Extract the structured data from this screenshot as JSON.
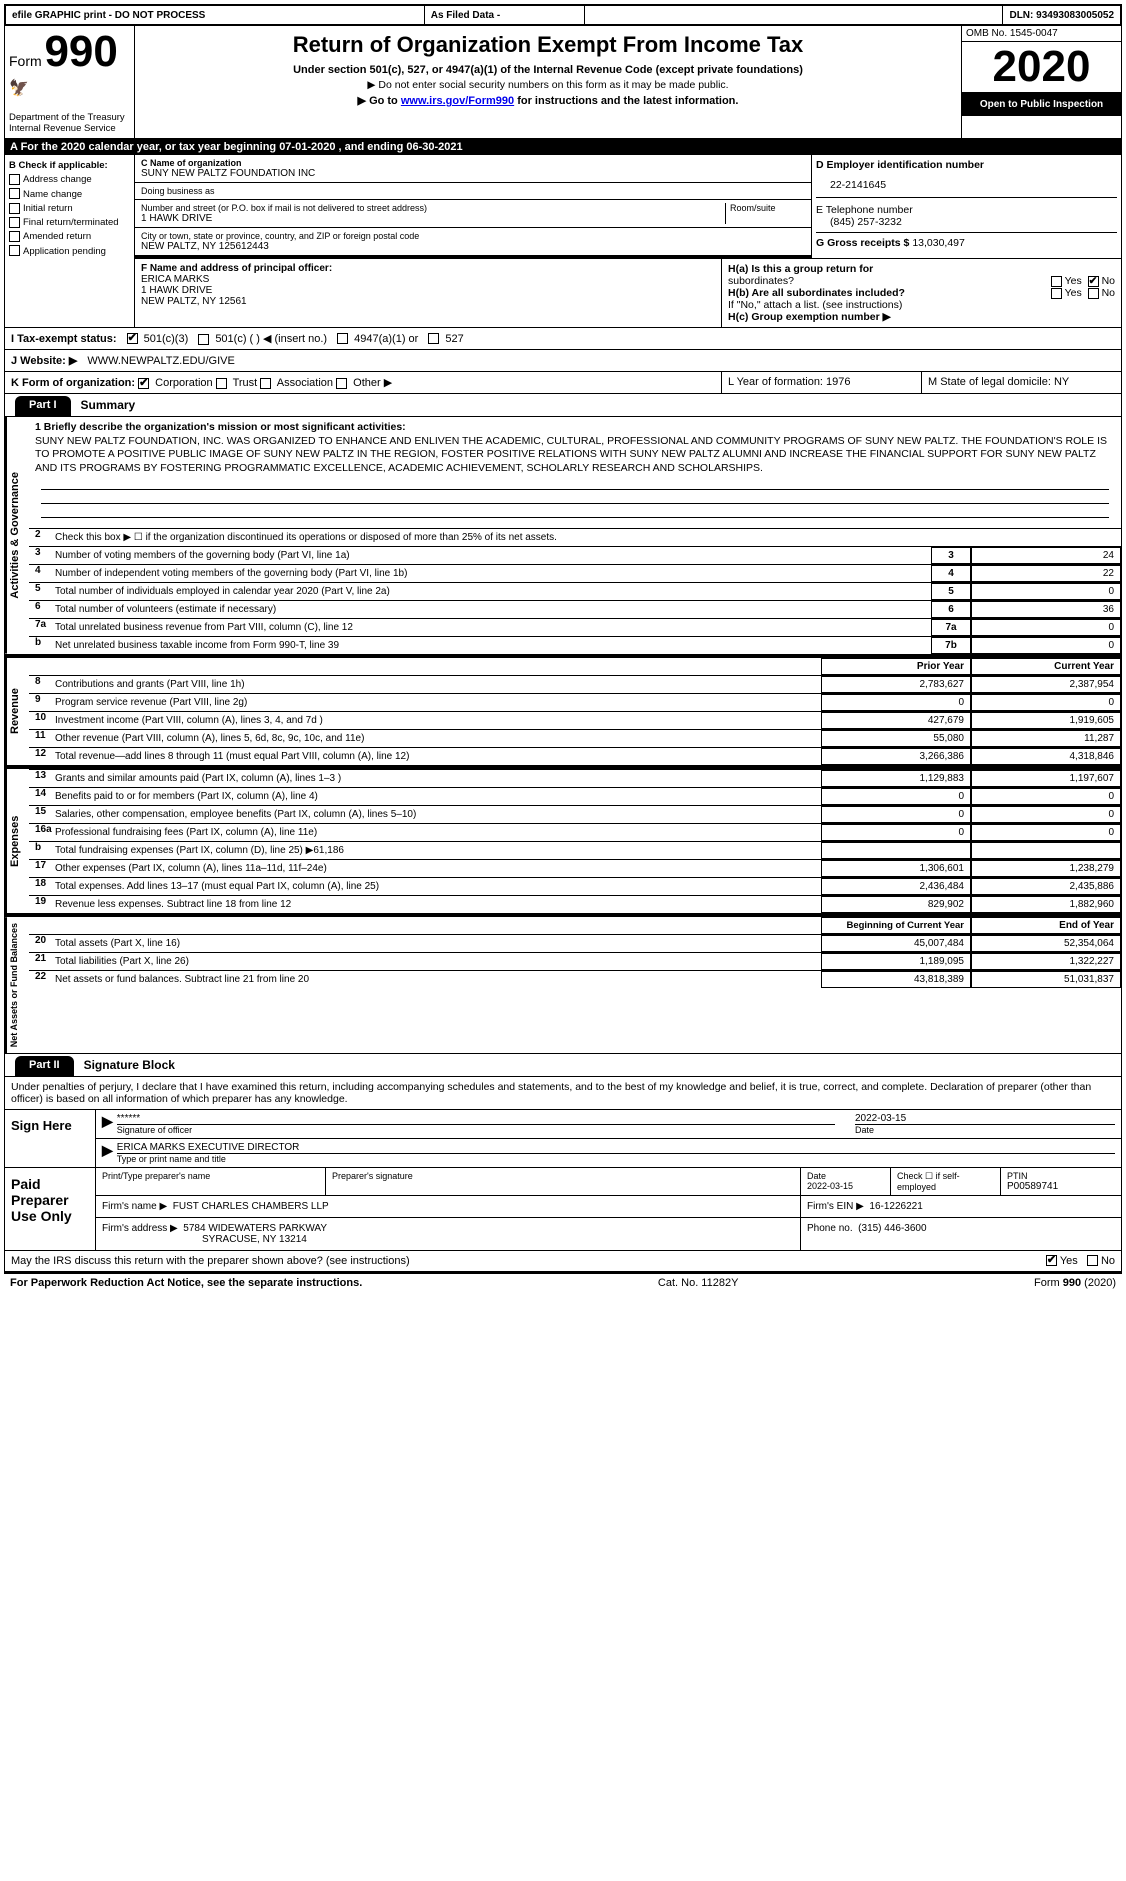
{
  "topbar": {
    "efile": "efile GRAPHIC print - DO NOT PROCESS",
    "asfiled": "As Filed Data -",
    "dln_label": "DLN:",
    "dln": "93493083005052"
  },
  "header": {
    "form_label": "Form",
    "form_num": "990",
    "dept": "Department of the Treasury\nInternal Revenue Service",
    "title": "Return of Organization Exempt From Income Tax",
    "sub1": "Under section 501(c), 527, or 4947(a)(1) of the Internal Revenue Code (except private foundations)",
    "sub2": "▶ Do not enter social security numbers on this form as it may be made public.",
    "sub3_pre": "▶ Go to ",
    "sub3_link": "www.irs.gov/Form990",
    "sub3_post": " for instructions and the latest information.",
    "omb_label": "OMB No. 1545-0047",
    "year": "2020",
    "inspect": "Open to Public Inspection"
  },
  "rowA": "A   For the 2020 calendar year, or tax year beginning 07-01-2020   , and ending 06-30-2021",
  "B": {
    "hdr": "B Check if applicable:",
    "items": [
      "Address change",
      "Name change",
      "Initial return",
      "Final return/terminated",
      "Amended return",
      "Application pending"
    ]
  },
  "C": {
    "name_lbl": "C Name of organization",
    "name": "SUNY NEW PALTZ FOUNDATION INC",
    "dba_lbl": "Doing business as",
    "dba": "",
    "street_lbl": "Number and street (or P.O. box if mail is not delivered to street address)",
    "room_lbl": "Room/suite",
    "street": "1 HAWK DRIVE",
    "city_lbl": "City or town, state or province, country, and ZIP or foreign postal code",
    "city": "NEW PALTZ, NY  125612443"
  },
  "D": {
    "lbl": "D Employer identification number",
    "val": "22-2141645"
  },
  "E": {
    "lbl": "E Telephone number",
    "val": "(845) 257-3232"
  },
  "G": {
    "lbl": "G Gross receipts $",
    "val": "13,030,497"
  },
  "F": {
    "lbl": "F  Name and address of principal officer:",
    "name": "ERICA MARKS",
    "addr1": "1 HAWK DRIVE",
    "addr2": "NEW PALTZ, NY  12561"
  },
  "H": {
    "a_lbl": "H(a)  Is this a group return for",
    "a_lbl2": "subordinates?",
    "a_yes": "Yes",
    "a_no": "No",
    "b_lbl": "H(b)  Are all subordinates included?",
    "b_yes": "Yes",
    "b_no": "No",
    "b_note": "If \"No,\" attach a list. (see instructions)",
    "c_lbl": "H(c)  Group exemption number ▶"
  },
  "I": {
    "lbl": "I   Tax-exempt status:",
    "o1": "501(c)(3)",
    "o2": "501(c) (  ) ◀ (insert no.)",
    "o3": "4947(a)(1) or",
    "o4": "527"
  },
  "J": {
    "lbl": "J   Website: ▶",
    "val": "WWW.NEWPALTZ.EDU/GIVE"
  },
  "K": {
    "lbl": "K Form of organization:",
    "opts": [
      "Corporation",
      "Trust",
      "Association",
      "Other ▶"
    ],
    "L": "L Year of formation: 1976",
    "M": "M State of legal domicile: NY"
  },
  "part1": {
    "tab": "Part I",
    "title": "Summary"
  },
  "mission_lbl": "1  Briefly describe the organization's mission or most significant activities:",
  "mission": "SUNY NEW PALTZ FOUNDATION, INC. WAS ORGANIZED TO ENHANCE AND ENLIVEN THE ACADEMIC, CULTURAL, PROFESSIONAL AND COMMUNITY PROGRAMS OF SUNY NEW PALTZ. THE FOUNDATION'S ROLE IS TO PROMOTE A POSITIVE PUBLIC IMAGE OF SUNY NEW PALTZ IN THE REGION, FOSTER POSITIVE RELATIONS WITH SUNY NEW PALTZ ALUMNI AND INCREASE THE FINANCIAL SUPPORT FOR SUNY NEW PALTZ AND ITS PROGRAMS BY FOSTERING PROGRAMMATIC EXCELLENCE, ACADEMIC ACHIEVEMENT, SCHOLARLY RESEARCH AND SCHOLARSHIPS.",
  "gov_lines": [
    {
      "n": "2",
      "t": "Check this box ▶ ☐ if the organization discontinued its operations or disposed of more than 25% of its net assets."
    },
    {
      "n": "3",
      "t": "Number of voting members of the governing body (Part VI, line 1a)",
      "box": "3",
      "v": "24"
    },
    {
      "n": "4",
      "t": "Number of independent voting members of the governing body (Part VI, line 1b)",
      "box": "4",
      "v": "22"
    },
    {
      "n": "5",
      "t": "Total number of individuals employed in calendar year 2020 (Part V, line 2a)",
      "box": "5",
      "v": "0"
    },
    {
      "n": "6",
      "t": "Total number of volunteers (estimate if necessary)",
      "box": "6",
      "v": "36"
    },
    {
      "n": "7a",
      "t": "Total unrelated business revenue from Part VIII, column (C), line 12",
      "box": "7a",
      "v": "0"
    },
    {
      "n": "b",
      "t": "Net unrelated business taxable income from Form 990-T, line 39",
      "box": "7b",
      "v": "0"
    }
  ],
  "py_hdr": "Prior Year",
  "cy_hdr": "Current Year",
  "rev_lines": [
    {
      "n": "8",
      "t": "Contributions and grants (Part VIII, line 1h)",
      "py": "2,783,627",
      "cy": "2,387,954"
    },
    {
      "n": "9",
      "t": "Program service revenue (Part VIII, line 2g)",
      "py": "0",
      "cy": "0"
    },
    {
      "n": "10",
      "t": "Investment income (Part VIII, column (A), lines 3, 4, and 7d )",
      "py": "427,679",
      "cy": "1,919,605"
    },
    {
      "n": "11",
      "t": "Other revenue (Part VIII, column (A), lines 5, 6d, 8c, 9c, 10c, and 11e)",
      "py": "55,080",
      "cy": "11,287"
    },
    {
      "n": "12",
      "t": "Total revenue—add lines 8 through 11 (must equal Part VIII, column (A), line 12)",
      "py": "3,266,386",
      "cy": "4,318,846"
    }
  ],
  "exp_lines": [
    {
      "n": "13",
      "t": "Grants and similar amounts paid (Part IX, column (A), lines 1–3 )",
      "py": "1,129,883",
      "cy": "1,197,607"
    },
    {
      "n": "14",
      "t": "Benefits paid to or for members (Part IX, column (A), line 4)",
      "py": "0",
      "cy": "0"
    },
    {
      "n": "15",
      "t": "Salaries, other compensation, employee benefits (Part IX, column (A), lines 5–10)",
      "py": "0",
      "cy": "0"
    },
    {
      "n": "16a",
      "t": "Professional fundraising fees (Part IX, column (A), line 11e)",
      "py": "0",
      "cy": "0"
    },
    {
      "n": "b",
      "t": "Total fundraising expenses (Part IX, column (D), line 25) ▶61,186",
      "py": "",
      "cy": ""
    },
    {
      "n": "17",
      "t": "Other expenses (Part IX, column (A), lines 11a–11d, 11f–24e)",
      "py": "1,306,601",
      "cy": "1,238,279"
    },
    {
      "n": "18",
      "t": "Total expenses. Add lines 13–17 (must equal Part IX, column (A), line 25)",
      "py": "2,436,484",
      "cy": "2,435,886"
    },
    {
      "n": "19",
      "t": "Revenue less expenses. Subtract line 18 from line 12",
      "py": "829,902",
      "cy": "1,882,960"
    }
  ],
  "bcy_hdr": "Beginning of Current Year",
  "eoy_hdr": "End of Year",
  "na_lines": [
    {
      "n": "20",
      "t": "Total assets (Part X, line 16)",
      "py": "45,007,484",
      "cy": "52,354,064"
    },
    {
      "n": "21",
      "t": "Total liabilities (Part X, line 26)",
      "py": "1,189,095",
      "cy": "1,322,227"
    },
    {
      "n": "22",
      "t": "Net assets or fund balances. Subtract line 21 from line 20",
      "py": "43,818,389",
      "cy": "51,031,837"
    }
  ],
  "part2": {
    "tab": "Part II",
    "title": "Signature Block"
  },
  "perjury": "Under penalties of perjury, I declare that I have examined this return, including accompanying schedules and statements, and to the best of my knowledge and belief, it is true, correct, and complete. Declaration of preparer (other than officer) is based on all information of which preparer has any knowledge.",
  "sign": {
    "here": "Sign Here",
    "stars": "******",
    "sig_lbl": "Signature of officer",
    "date": "2022-03-15",
    "date_lbl": "Date",
    "name": "ERICA MARKS  EXECUTIVE DIRECTOR",
    "name_lbl": "Type or print name and title"
  },
  "paid": {
    "hdr": "Paid Preparer Use Only",
    "c1": "Print/Type preparer's name",
    "c2": "Preparer's signature",
    "c3": "Date",
    "c3v": "2022-03-15",
    "c4": "Check ☐ if self-employed",
    "c5": "PTIN",
    "c5v": "P00589741",
    "firm_lbl": "Firm's name    ▶",
    "firm": "FUST CHARLES CHAMBERS LLP",
    "ein_lbl": "Firm's EIN ▶",
    "ein": "16-1226221",
    "addr_lbl": "Firm's address ▶",
    "addr1": "5784 WIDEWATERS PARKWAY",
    "addr2": "SYRACUSE, NY  13214",
    "phone_lbl": "Phone no.",
    "phone": "(315) 446-3600"
  },
  "discuss": "May the IRS discuss this return with the preparer shown above? (see instructions)",
  "discuss_yes": "Yes",
  "discuss_no": "No",
  "footer": {
    "left": "For Paperwork Reduction Act Notice, see the separate instructions.",
    "mid": "Cat. No. 11282Y",
    "right": "Form 990 (2020)"
  },
  "vtabs": {
    "gov": "Activities & Governance",
    "rev": "Revenue",
    "exp": "Expenses",
    "na": "Net Assets or Fund Balances"
  }
}
